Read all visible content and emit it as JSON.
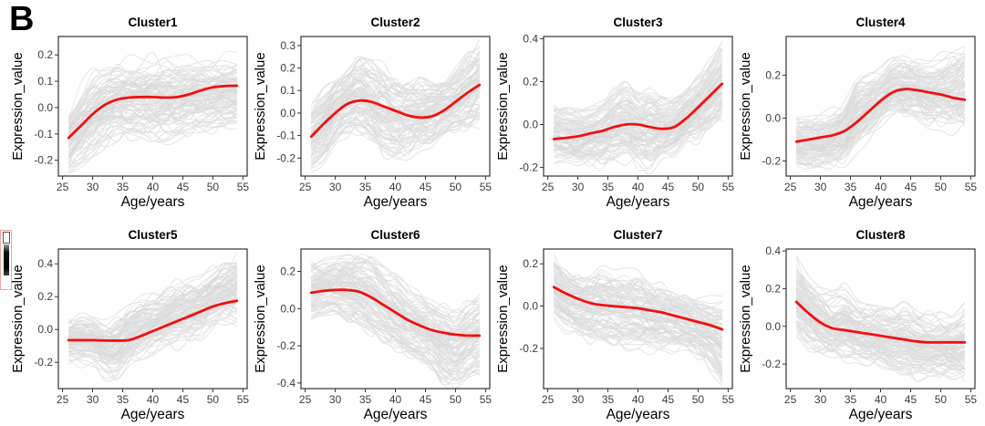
{
  "figure": {
    "panel_label": "B",
    "colors": {
      "trend": "#f40f0f",
      "spaghetti": "#e3e3e3",
      "spaghetti_dark": "#d8d8d8",
      "panel_border": "#333333",
      "tick_text": "#3c3c3c",
      "axis_text": "#000000"
    }
  },
  "chart_data": [
    {
      "type": "line",
      "title": "Cluster1",
      "xlabel": "Age/years",
      "ylabel": "Expression_value",
      "x": [
        26,
        28,
        30,
        32,
        34,
        36,
        38,
        40,
        42,
        44,
        46,
        48,
        50,
        52,
        54
      ],
      "x_ticks": [
        25,
        30,
        35,
        40,
        45,
        50,
        55
      ],
      "xlim": [
        24.3,
        55.7
      ],
      "y_ticks": [
        -0.2,
        -0.1,
        0.0,
        0.1,
        0.2
      ],
      "ylim": [
        -0.26,
        0.27
      ],
      "trend": [
        -0.115,
        -0.07,
        -0.025,
        0.01,
        0.03,
        0.038,
        0.04,
        0.04,
        0.038,
        0.04,
        0.05,
        0.065,
        0.077,
        0.082,
        0.083
      ],
      "band_lower": [
        -0.24,
        -0.22,
        -0.19,
        -0.15,
        -0.12,
        -0.12,
        -0.12,
        -0.13,
        -0.13,
        -0.12,
        -0.1,
        -0.09,
        -0.09,
        -0.08,
        -0.08
      ],
      "band_upper": [
        0.0,
        0.08,
        0.14,
        0.17,
        0.18,
        0.19,
        0.19,
        0.2,
        0.2,
        0.19,
        0.19,
        0.19,
        0.19,
        0.2,
        0.2
      ]
    },
    {
      "type": "line",
      "title": "Cluster2",
      "xlabel": "Age/years",
      "ylabel": "Expression_value",
      "x": [
        26,
        28,
        30,
        32,
        34,
        36,
        38,
        40,
        42,
        44,
        46,
        48,
        50,
        52,
        54
      ],
      "x_ticks": [
        25,
        30,
        35,
        40,
        45,
        50,
        55
      ],
      "xlim": [
        24.3,
        55.7
      ],
      "y_ticks": [
        -0.2,
        -0.1,
        0.0,
        0.1,
        0.2,
        0.3
      ],
      "ylim": [
        -0.28,
        0.34
      ],
      "trend": [
        -0.105,
        -0.05,
        0.0,
        0.04,
        0.055,
        0.05,
        0.03,
        0.01,
        -0.01,
        -0.02,
        -0.015,
        0.01,
        0.05,
        0.09,
        0.125
      ],
      "band_lower": [
        -0.27,
        -0.22,
        -0.14,
        -0.1,
        -0.1,
        -0.15,
        -0.2,
        -0.22,
        -0.2,
        -0.17,
        -0.15,
        -0.12,
        -0.1,
        -0.08,
        -0.06
      ],
      "band_upper": [
        0.05,
        0.1,
        0.16,
        0.21,
        0.26,
        0.24,
        0.22,
        0.18,
        0.16,
        0.15,
        0.15,
        0.17,
        0.2,
        0.26,
        0.32
      ]
    },
    {
      "type": "line",
      "title": "Cluster3",
      "xlabel": "Age/years",
      "ylabel": "Expression_value",
      "x": [
        26,
        28,
        30,
        32,
        34,
        36,
        38,
        40,
        42,
        44,
        46,
        48,
        50,
        52,
        54
      ],
      "x_ticks": [
        25,
        30,
        35,
        40,
        45,
        50,
        55
      ],
      "xlim": [
        24.3,
        55.7
      ],
      "y_ticks": [
        -0.2,
        0.0,
        0.2,
        0.4
      ],
      "ylim": [
        -0.24,
        0.41
      ],
      "trend": [
        -0.068,
        -0.062,
        -0.055,
        -0.042,
        -0.03,
        -0.012,
        0.0,
        0.0,
        -0.012,
        -0.02,
        -0.012,
        0.028,
        0.08,
        0.135,
        0.19
      ],
      "band_lower": [
        -0.17,
        -0.19,
        -0.2,
        -0.2,
        -0.2,
        -0.19,
        -0.18,
        -0.2,
        -0.22,
        -0.18,
        -0.15,
        -0.1,
        -0.08,
        -0.05,
        -0.02
      ],
      "band_upper": [
        0.08,
        0.07,
        0.07,
        0.08,
        0.1,
        0.16,
        0.19,
        0.15,
        0.16,
        0.12,
        0.12,
        0.16,
        0.22,
        0.3,
        0.38
      ]
    },
    {
      "type": "line",
      "title": "Cluster4",
      "xlabel": "Age/years",
      "ylabel": "Expression_value",
      "x": [
        26,
        28,
        30,
        32,
        34,
        36,
        38,
        40,
        42,
        44,
        46,
        48,
        50,
        52,
        54
      ],
      "x_ticks": [
        25,
        30,
        35,
        40,
        45,
        50,
        55
      ],
      "xlim": [
        24.3,
        55.7
      ],
      "y_ticks": [
        -0.2,
        0.0,
        0.2
      ],
      "ylim": [
        -0.27,
        0.38
      ],
      "trend": [
        -0.11,
        -0.1,
        -0.09,
        -0.08,
        -0.06,
        -0.02,
        0.03,
        0.08,
        0.12,
        0.135,
        0.13,
        0.12,
        0.11,
        0.095,
        0.085
      ],
      "band_lower": [
        -0.24,
        -0.25,
        -0.25,
        -0.24,
        -0.22,
        -0.16,
        -0.1,
        -0.04,
        0.0,
        -0.01,
        -0.02,
        -0.04,
        -0.05,
        -0.07,
        -0.08
      ],
      "band_upper": [
        0.02,
        0.02,
        0.02,
        0.05,
        0.1,
        0.2,
        0.22,
        0.24,
        0.3,
        0.3,
        0.28,
        0.27,
        0.3,
        0.33,
        0.36
      ]
    },
    {
      "type": "line",
      "title": "Cluster5",
      "xlabel": "Age/years",
      "ylabel": "Expression_value",
      "x": [
        26,
        28,
        30,
        32,
        34,
        36,
        38,
        40,
        42,
        44,
        46,
        48,
        50,
        52,
        54
      ],
      "x_ticks": [
        25,
        30,
        35,
        40,
        45,
        50,
        55
      ],
      "xlim": [
        24.3,
        55.7
      ],
      "y_ticks": [
        -0.2,
        0.0,
        0.2,
        0.4
      ],
      "ylim": [
        -0.36,
        0.49
      ],
      "trend": [
        -0.065,
        -0.065,
        -0.065,
        -0.067,
        -0.068,
        -0.065,
        -0.04,
        -0.01,
        0.02,
        0.05,
        0.08,
        0.11,
        0.14,
        0.16,
        0.175
      ],
      "band_lower": [
        -0.22,
        -0.23,
        -0.24,
        -0.3,
        -0.33,
        -0.25,
        -0.2,
        -0.17,
        -0.15,
        -0.12,
        -0.1,
        -0.06,
        -0.02,
        0.0,
        0.03
      ],
      "band_upper": [
        0.08,
        0.09,
        0.09,
        0.05,
        0.1,
        0.15,
        0.2,
        0.22,
        0.25,
        0.3,
        0.3,
        0.32,
        0.38,
        0.42,
        0.47
      ]
    },
    {
      "type": "line",
      "title": "Cluster6",
      "xlabel": "Age/years",
      "ylabel": "Expression_value",
      "x": [
        26,
        28,
        30,
        32,
        34,
        36,
        38,
        40,
        42,
        44,
        46,
        48,
        50,
        52,
        54
      ],
      "x_ticks": [
        25,
        30,
        35,
        40,
        45,
        50,
        55
      ],
      "xlim": [
        24.3,
        55.7
      ],
      "y_ticks": [
        -0.4,
        -0.2,
        0.0,
        0.2
      ],
      "ylim": [
        -0.43,
        0.32
      ],
      "trend": [
        0.085,
        0.095,
        0.1,
        0.1,
        0.09,
        0.06,
        0.02,
        -0.02,
        -0.06,
        -0.09,
        -0.115,
        -0.13,
        -0.14,
        -0.145,
        -0.145
      ],
      "band_lower": [
        -0.05,
        -0.03,
        -0.02,
        -0.06,
        -0.1,
        -0.14,
        -0.18,
        -0.22,
        -0.25,
        -0.28,
        -0.32,
        -0.4,
        -0.42,
        -0.38,
        -0.35
      ],
      "band_upper": [
        0.25,
        0.27,
        0.28,
        0.3,
        0.3,
        0.28,
        0.22,
        0.18,
        0.12,
        0.08,
        0.05,
        0.02,
        0.0,
        0.05,
        0.07
      ]
    },
    {
      "type": "line",
      "title": "Cluster7",
      "xlabel": "Age/years",
      "ylabel": "Expression_value",
      "x": [
        26,
        28,
        30,
        32,
        34,
        36,
        38,
        40,
        42,
        44,
        46,
        48,
        50,
        52,
        54
      ],
      "x_ticks": [
        25,
        30,
        35,
        40,
        45,
        50,
        55
      ],
      "xlim": [
        24.3,
        55.7
      ],
      "y_ticks": [
        -0.2,
        0.0,
        0.2
      ],
      "ylim": [
        -0.39,
        0.27
      ],
      "trend": [
        0.09,
        0.06,
        0.035,
        0.015,
        0.005,
        0.0,
        -0.005,
        -0.01,
        -0.02,
        -0.03,
        -0.045,
        -0.06,
        -0.075,
        -0.09,
        -0.11
      ],
      "band_lower": [
        -0.07,
        -0.12,
        -0.15,
        -0.17,
        -0.18,
        -0.19,
        -0.2,
        -0.21,
        -0.22,
        -0.22,
        -0.22,
        -0.23,
        -0.25,
        -0.3,
        -0.38
      ],
      "band_upper": [
        0.26,
        0.2,
        0.17,
        0.17,
        0.18,
        0.17,
        0.17,
        0.16,
        0.14,
        0.12,
        0.1,
        0.08,
        0.05,
        0.04,
        0.05
      ]
    },
    {
      "type": "line",
      "title": "Cluster8",
      "xlabel": "Age/years",
      "ylabel": "Expression_value",
      "x": [
        26,
        28,
        30,
        32,
        34,
        36,
        38,
        40,
        42,
        44,
        46,
        48,
        50,
        52,
        54
      ],
      "x_ticks": [
        25,
        30,
        35,
        40,
        45,
        50,
        55
      ],
      "xlim": [
        24.3,
        55.7
      ],
      "y_ticks": [
        -0.2,
        0.0,
        0.2,
        0.4
      ],
      "ylim": [
        -0.33,
        0.41
      ],
      "trend": [
        0.13,
        0.07,
        0.02,
        -0.01,
        -0.02,
        -0.03,
        -0.04,
        -0.05,
        -0.06,
        -0.07,
        -0.08,
        -0.085,
        -0.085,
        -0.085,
        -0.085
      ],
      "band_lower": [
        -0.05,
        -0.12,
        -0.15,
        -0.17,
        -0.18,
        -0.19,
        -0.2,
        -0.22,
        -0.25,
        -0.27,
        -0.28,
        -0.27,
        -0.27,
        -0.28,
        -0.3
      ],
      "band_upper": [
        0.37,
        0.28,
        0.22,
        0.18,
        0.22,
        0.15,
        0.13,
        0.12,
        0.1,
        0.12,
        0.1,
        0.08,
        0.08,
        0.06,
        0.12
      ]
    }
  ]
}
